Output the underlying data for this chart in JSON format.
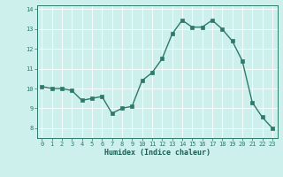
{
  "x": [
    0,
    1,
    2,
    3,
    4,
    5,
    6,
    7,
    8,
    9,
    10,
    11,
    12,
    13,
    14,
    15,
    16,
    17,
    18,
    19,
    20,
    21,
    22,
    23
  ],
  "y": [
    10.1,
    10.0,
    10.0,
    9.9,
    9.4,
    9.5,
    9.6,
    8.75,
    9.0,
    9.1,
    10.4,
    10.8,
    11.5,
    12.75,
    13.45,
    13.1,
    13.1,
    13.45,
    13.0,
    12.4,
    11.4,
    9.3,
    8.55,
    8.0
  ],
  "line_color": "#2d7a6a",
  "marker": "s",
  "markersize": 2.2,
  "linewidth": 1.0,
  "xlabel": "Humidex (Indice chaleur)",
  "xlim": [
    -0.5,
    23.5
  ],
  "ylim": [
    7.5,
    14.2
  ],
  "yticks": [
    8,
    9,
    10,
    11,
    12,
    13,
    14
  ],
  "xticks": [
    0,
    1,
    2,
    3,
    4,
    5,
    6,
    7,
    8,
    9,
    10,
    11,
    12,
    13,
    14,
    15,
    16,
    17,
    18,
    19,
    20,
    21,
    22,
    23
  ],
  "bg_color": "#cdf0ed",
  "grid_color": "#ffffff",
  "tick_color": "#2d7a6a",
  "label_color": "#1a5e50",
  "tick_fontsize": 5.0,
  "xlabel_fontsize": 6.0
}
